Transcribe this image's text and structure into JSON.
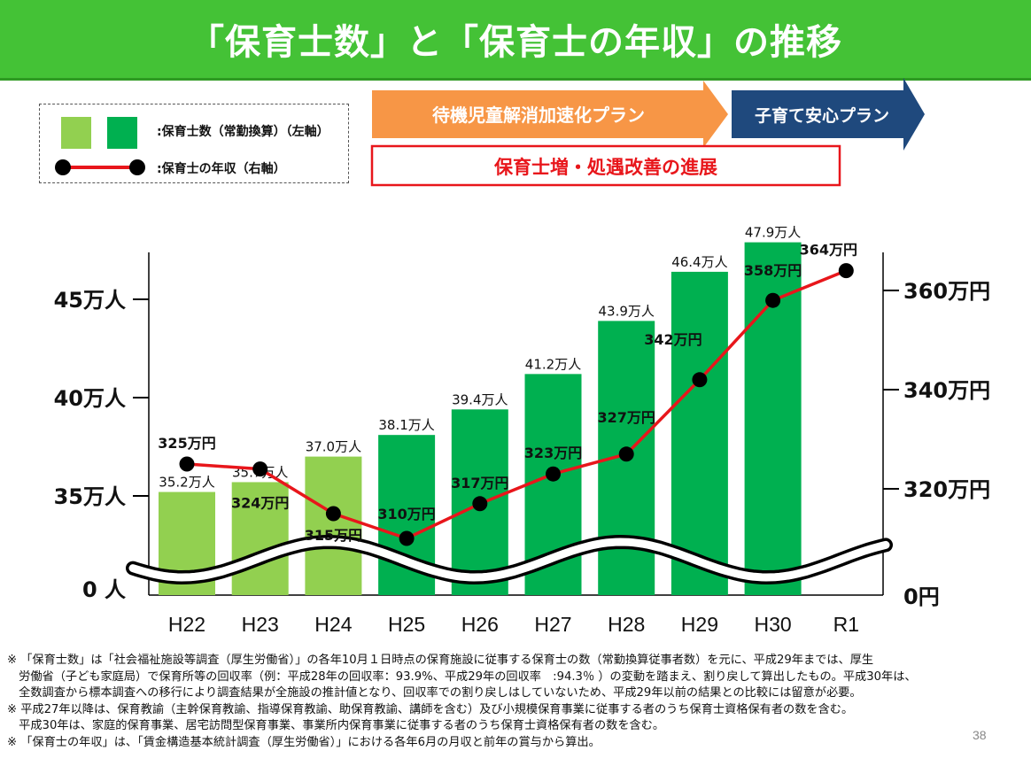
{
  "title": "「保育士数」と「保育士の年収」の推移",
  "legend": {
    "bars_label": ":保育士数（常勤換算）（左軸）",
    "line_label": ":保育士の年収（右軸）"
  },
  "arrows": {
    "plan1": "待機児童解消加速化プラン",
    "plan2": "子育て安心プラン"
  },
  "highlight_box": "保育士増・処遇改善の進展",
  "colors": {
    "title_bg": "#44c236",
    "bar_light": "#92d050",
    "bar_dark": "#00b050",
    "line": "#e8161b",
    "marker": "#000000",
    "arrow_orange": "#f79646",
    "arrow_navy": "#1f497d",
    "highlight_border": "#e8161b",
    "highlight_text": "#e8161b"
  },
  "chart_data": {
    "type": "bar+line",
    "categories": [
      "H22",
      "H23",
      "H24",
      "H25",
      "H26",
      "H27",
      "H28",
      "H29",
      "H30",
      "R1"
    ],
    "left_axis": {
      "ticks": [
        "0 人",
        "35万人",
        "40万人",
        "45万人"
      ],
      "unit": "万人",
      "broken": true
    },
    "right_axis": {
      "ticks": [
        "0円",
        "320万円",
        "340万円",
        "360万円"
      ],
      "unit": "万円",
      "broken": true
    },
    "series": [
      {
        "name": "保育士数（常勤換算）",
        "kind": "bar",
        "axis": "left",
        "values": [
          35.2,
          35.7,
          37.0,
          38.1,
          39.4,
          41.2,
          43.9,
          46.4,
          47.9,
          null
        ],
        "labels": [
          "35.2万人",
          "35.7万人",
          "37.0万人",
          "38.1万人",
          "39.4万人",
          "41.2万人",
          "43.9万人",
          "46.4万人",
          "47.9万人",
          ""
        ],
        "shade": [
          "light",
          "light",
          "light",
          "dark",
          "dark",
          "dark",
          "dark",
          "dark",
          "dark",
          ""
        ]
      },
      {
        "name": "保育士の年収",
        "kind": "line",
        "axis": "right",
        "values": [
          325,
          324,
          315,
          310,
          317,
          323,
          327,
          342,
          358,
          364
        ],
        "labels": [
          "325万円",
          "324万円",
          "315万円",
          "310万円",
          "317万円",
          "323万円",
          "327万円",
          "342万円",
          "358万円",
          "364万円"
        ]
      }
    ]
  },
  "notes": [
    "※ 「保育士数」は「社会福祉施設等調査（厚生労働省）」の各年10月１日時点の保育施設に従事する保育士の数（常勤換算従事者数）を元に、平成29年までは、厚生",
    "　労働省（子ども家庭局）で保育所等の回収率（例：平成28年の回収率：93.9%、平成29年の回収率　:94.3％ ）の変動を踏まえ、割り戻して算出したもの。平成30年は、",
    "　全数調査から標本調査への移行により調査結果が全施設の推計値となり、回収率での割り戻しはしていないため、平成29年以前の結果との比較には留意が必要。",
    "※ 平成27年以降は、保育教諭（主幹保育教諭、指導保育教諭、助保育教諭、講師を含む）及び小規模保育事業に従事する者のうち保育士資格保有者の数を含む。",
    "　平成30年は、家庭的保育事業、居宅訪問型保育事業、事業所内保育事業に従事する者のうち保育士資格保有者の数を含む。",
    "※ 「保育士の年収」は、「賃金構造基本統計調査（厚生労働省）」における各年6月の月収と前年の賞与から算出。"
  ],
  "page_number": "38"
}
